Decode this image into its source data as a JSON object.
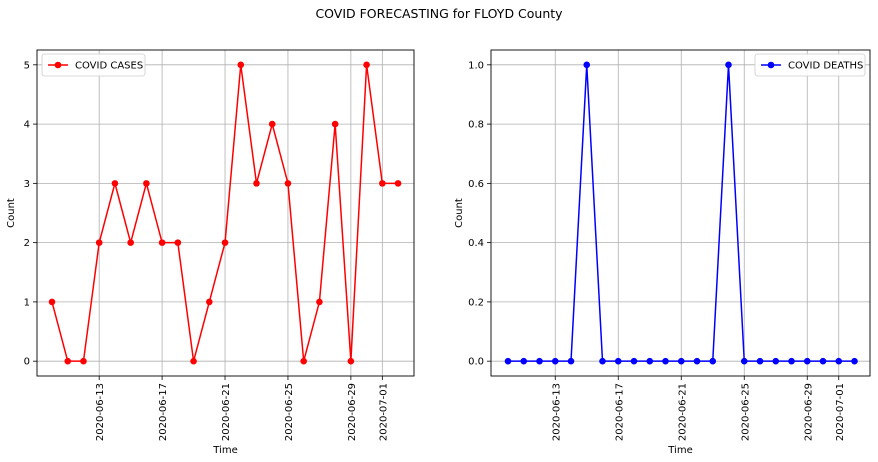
{
  "figure": {
    "suptitle": "COVID FORECASTING for FLOYD County"
  },
  "colors": {
    "cases": "#ff0000",
    "deaths": "#0000ff",
    "grid": "#b0b0b0",
    "axis": "#000000"
  },
  "chart_data": [
    {
      "type": "line",
      "title": "",
      "xlabel": "Time",
      "ylabel": "Count",
      "x_start": "2020-06-10",
      "xticks": [
        "2020-06-13",
        "2020-06-17",
        "2020-06-21",
        "2020-06-25",
        "2020-06-29",
        "2020-07-01"
      ],
      "yticks": [
        "0",
        "1",
        "2",
        "3",
        "4",
        "5"
      ],
      "ylim": [
        -0.25,
        5.25
      ],
      "grid": true,
      "legend": "upper left",
      "series": [
        {
          "name": "COVID CASES",
          "color": "#ff0000",
          "values": [
            1,
            0,
            0,
            2,
            3,
            2,
            3,
            2,
            2,
            0,
            1,
            2,
            5,
            3,
            4,
            3,
            0,
            1,
            4,
            0,
            5,
            3,
            3
          ]
        }
      ]
    },
    {
      "type": "line",
      "title": "",
      "xlabel": "Time",
      "ylabel": "Count",
      "x_start": "2020-06-10",
      "xticks": [
        "2020-06-13",
        "2020-06-17",
        "2020-06-21",
        "2020-06-25",
        "2020-06-29",
        "2020-07-01"
      ],
      "yticks": [
        "0.0",
        "0.2",
        "0.4",
        "0.6",
        "0.8",
        "1.0"
      ],
      "ylim": [
        -0.05,
        1.05
      ],
      "grid": true,
      "legend": "upper right",
      "series": [
        {
          "name": "COVID DEATHS",
          "color": "#0000ff",
          "values": [
            0,
            0,
            0,
            0,
            0,
            1,
            0,
            0,
            0,
            0,
            0,
            0,
            0,
            0,
            1,
            0,
            0,
            0,
            0,
            0,
            0,
            0,
            0
          ]
        }
      ]
    }
  ]
}
